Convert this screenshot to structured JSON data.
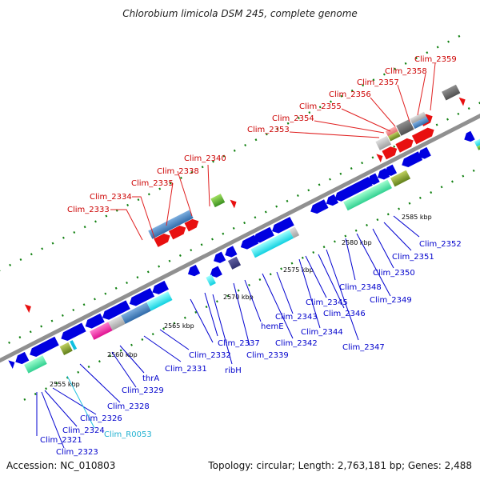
{
  "title": "Chlorobium limicola DSM 245, complete genome",
  "accession": "Accession: NC_010803",
  "topology": "Topology: circular; Length: 2,763,181 bp; Genes: 2,488",
  "kbp_ticks": [
    "2555 kbp",
    "2560 kbp",
    "2565 kbp",
    "2570 kbp",
    "2575 kbp",
    "2580 kbp",
    "2585 kbp"
  ],
  "labels_above": [
    "Clim_2333",
    "Clim_2334",
    "Clim_2335",
    "Clim_2338",
    "Clim_2340",
    "Clim_2353",
    "Clim_2354",
    "Clim_2355",
    "Clim_2356",
    "Clim_2357",
    "Clim_2358",
    "Clim_2359"
  ],
  "labels_below": [
    "Clim_2321",
    "Clim_2323",
    "Clim_2324",
    "Clim_2326",
    "Clim_R0053",
    "Clim_2328",
    "Clim_2329",
    "thrA",
    "Clim_2331",
    "Clim_2332",
    "ribH",
    "Clim_2337",
    "Clim_2339",
    "hemE",
    "Clim_2342",
    "Clim_2343",
    "Clim_2344",
    "Clim_2345",
    "Clim_2346",
    "Clim_2347",
    "Clim_2348",
    "Clim_2349",
    "Clim_2350",
    "Clim_2351",
    "Clim_2352"
  ],
  "colors": {
    "forward": "#e81010",
    "reverse": "#0000e0",
    "rna": "#10c0e0",
    "label_above": "#cc0000",
    "label_below": "#0000cc",
    "tick": "#108010",
    "backbone": "#909090"
  }
}
